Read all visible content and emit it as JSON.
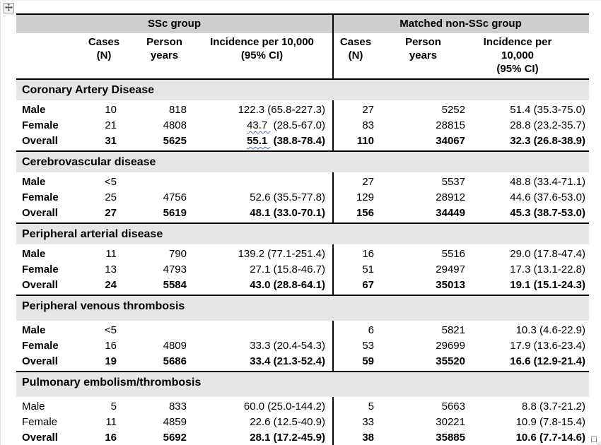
{
  "colors": {
    "group_header_bg": "#d0cece",
    "section_bg": "#e7e6e6",
    "border": "#000000",
    "squiggle": "#3a66d6"
  },
  "table": {
    "group_headers": [
      "SSc group",
      "Matched non-SSc group"
    ],
    "column_headers": {
      "cases_l1": "Cases",
      "cases_l2": "(N)",
      "py_l1": "Person",
      "py_l2": "years",
      "inc_l1": "Incidence per 10,000",
      "inc_l2": "(95% CI)"
    },
    "sections": [
      {
        "title": "Coronary Artery Disease",
        "rows": [
          {
            "label": "Male",
            "bold": "label",
            "ssc": {
              "cases": "10",
              "py": "818",
              "inc": "122.3 (65.8-227.3)"
            },
            "non": {
              "cases": "27",
              "py": "5252",
              "inc": "51.4 (35.3-75.0)"
            }
          },
          {
            "label": "Female",
            "bold": "label",
            "ssc": {
              "cases": "21",
              "py": "4808",
              "inc": "43.7  (28.5-67.0)",
              "squiggle": "43.7 "
            },
            "non": {
              "cases": "83",
              "py": "28815",
              "inc": "28.8 (23.2-35.7)"
            }
          },
          {
            "label": "Overall",
            "bold": "all",
            "ssc": {
              "cases": "31",
              "py": "5625",
              "inc": "55.1  (38.8-78.4)",
              "squiggle": "55.1 "
            },
            "non": {
              "cases": "110",
              "py": "34067",
              "inc": "32.3 (26.8-38.9)"
            }
          }
        ]
      },
      {
        "title": "Cerebrovascular disease",
        "rows": [
          {
            "label": "Male",
            "bold": "label",
            "ssc": {
              "cases": "<5",
              "py": "",
              "inc": ""
            },
            "non": {
              "cases": "27",
              "py": "5537",
              "inc": "48.8 (33.4-71.1)"
            }
          },
          {
            "label": "Female",
            "bold": "label",
            "ssc": {
              "cases": "25",
              "py": "4756",
              "inc": "52.6 (35.5-77.8)"
            },
            "non": {
              "cases": "129",
              "py": "28912",
              "inc": "44.6 (37.6-53.0)"
            }
          },
          {
            "label": "Overall",
            "bold": "all",
            "ssc": {
              "cases": "27",
              "py": "5619",
              "inc": "48.1 (33.0-70.1)"
            },
            "non": {
              "cases": "156",
              "py": "34449",
              "inc": "45.3 (38.7-53.0)"
            }
          }
        ]
      },
      {
        "title": "Peripheral arterial disease",
        "rows": [
          {
            "label": "Male",
            "bold": "label",
            "ssc": {
              "cases": "11",
              "py": "790",
              "inc": "139.2 (77.1-251.4)"
            },
            "non": {
              "cases": "16",
              "py": "5516",
              "inc": "29.0 (17.8-47.4)"
            }
          },
          {
            "label": "Female",
            "bold": "label",
            "ssc": {
              "cases": "13",
              "py": "4793",
              "inc": "27.1 (15.8-46.7)"
            },
            "non": {
              "cases": "51",
              "py": "29497",
              "inc": "17.3 (13.1-22.8)"
            }
          },
          {
            "label": "Overall",
            "bold": "all",
            "ssc": {
              "cases": "24",
              "py": "5584",
              "inc": "43.0 (28.8-64.1)"
            },
            "non": {
              "cases": "67",
              "py": "35013",
              "inc": "19.1 (15.1-24.3)"
            }
          }
        ]
      },
      {
        "title": "Peripheral venous thrombosis",
        "rows": [
          {
            "label": "Male",
            "bold": "label",
            "ssc": {
              "cases": "<5",
              "py": "",
              "inc": ""
            },
            "non": {
              "cases": "6",
              "py": "5821",
              "inc": "10.3 (4.6-22.9)"
            }
          },
          {
            "label": "Female",
            "bold": "label",
            "ssc": {
              "cases": "16",
              "py": "4809",
              "inc": "33.3 (20.4-54.3)"
            },
            "non": {
              "cases": "53",
              "py": "29699",
              "inc": "17.9 (13.6-23.4)"
            }
          },
          {
            "label": "Overall",
            "bold": "all",
            "ssc": {
              "cases": "19",
              "py": "5686",
              "inc": "33.4 (21.3-52.4)"
            },
            "non": {
              "cases": "59",
              "py": "35520",
              "inc": "16.6 (12.9-21.4)"
            }
          }
        ]
      },
      {
        "title": "Pulmonary embolism/thrombosis",
        "rows": [
          {
            "label": "Male",
            "bold": "none",
            "ssc": {
              "cases": "5",
              "py": "833",
              "inc": "60.0 (25.0-144.2)"
            },
            "non": {
              "cases": "5",
              "py": "5663",
              "inc": "8.8 (3.7-21.2)"
            }
          },
          {
            "label": "Female",
            "bold": "none",
            "ssc": {
              "cases": "11",
              "py": "4859",
              "inc": "22.6 (12.5-40.9)"
            },
            "non": {
              "cases": "33",
              "py": "30221",
              "inc": "10.9 (7.8-15.4)"
            }
          },
          {
            "label": "Overall",
            "bold": "all",
            "ssc": {
              "cases": "16",
              "py": "5692",
              "inc": "28.1 (17.2-45.9)"
            },
            "non": {
              "cases": "38",
              "py": "35885",
              "inc": "10.6 (7.7-14.6)"
            }
          }
        ]
      }
    ]
  }
}
